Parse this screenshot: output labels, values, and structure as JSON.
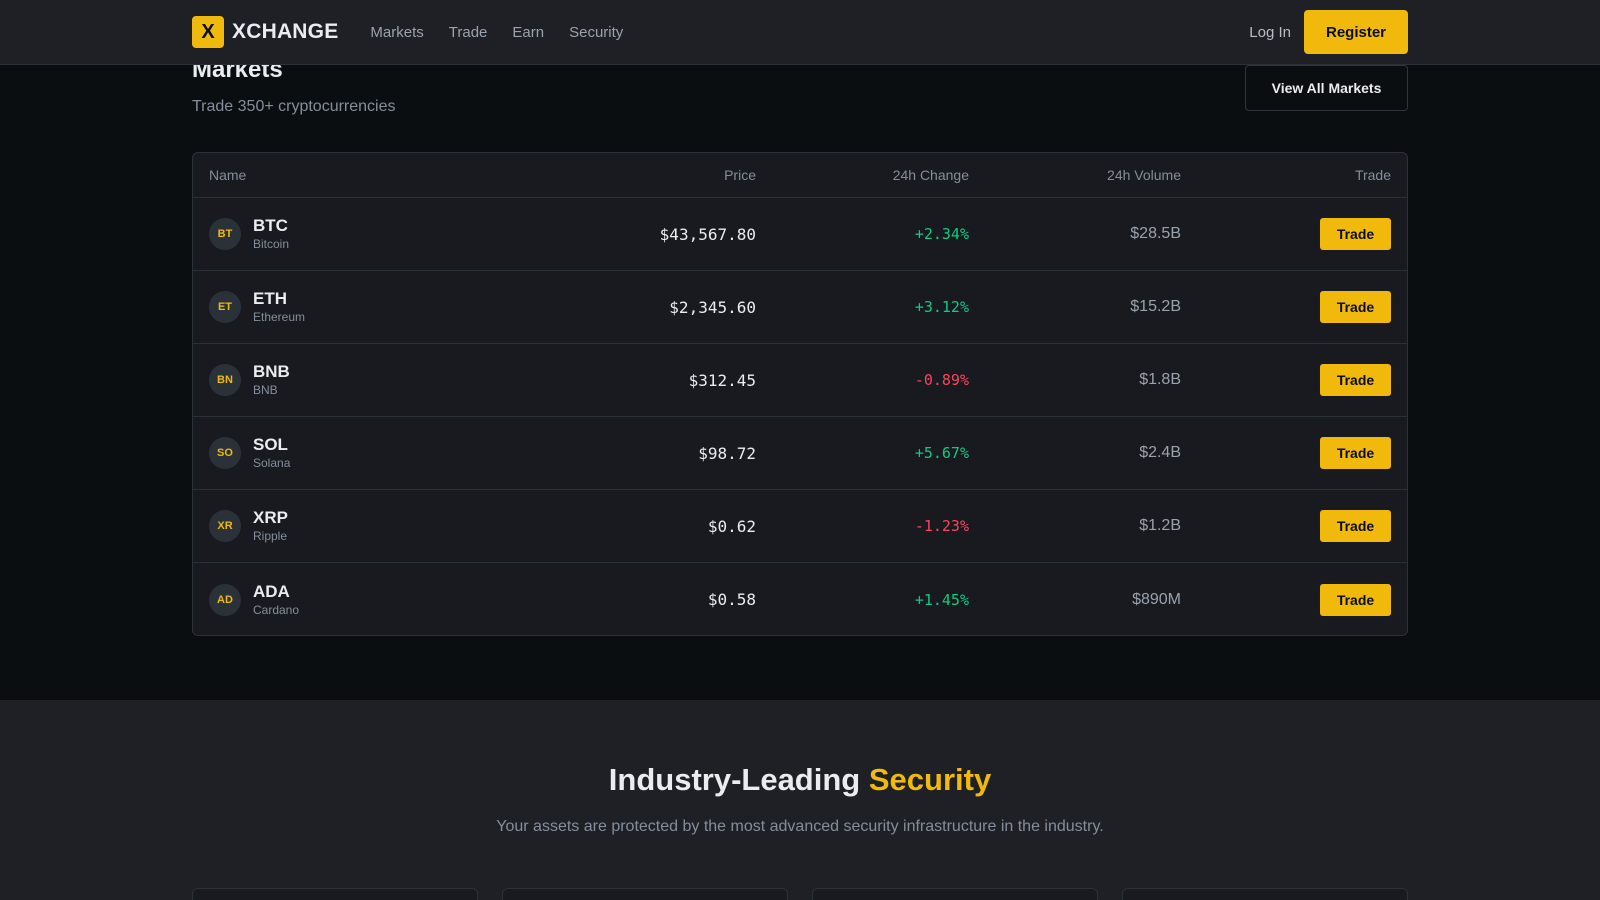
{
  "header": {
    "logo_mark": "X",
    "logo_text": "XCHANGE",
    "nav": [
      "Markets",
      "Trade",
      "Earn",
      "Security"
    ],
    "login": "Log In",
    "register": "Register"
  },
  "markets": {
    "title": "Markets",
    "subtitle": "Trade 350+ cryptocurrencies",
    "view_all": "View All Markets",
    "columns": [
      "Name",
      "Price",
      "24h Change",
      "24h Volume",
      "Trade"
    ],
    "rows": [
      {
        "icon": "BT",
        "symbol": "BTC",
        "name": "Bitcoin",
        "price": "$43,567.80",
        "change": "+2.34%",
        "direction": "up",
        "volume": "$28.5B",
        "action": "Trade"
      },
      {
        "icon": "ET",
        "symbol": "ETH",
        "name": "Ethereum",
        "price": "$2,345.60",
        "change": "+3.12%",
        "direction": "up",
        "volume": "$15.2B",
        "action": "Trade"
      },
      {
        "icon": "BN",
        "symbol": "BNB",
        "name": "BNB",
        "price": "$312.45",
        "change": "-0.89%",
        "direction": "down",
        "volume": "$1.8B",
        "action": "Trade"
      },
      {
        "icon": "SO",
        "symbol": "SOL",
        "name": "Solana",
        "price": "$98.72",
        "change": "+5.67%",
        "direction": "up",
        "volume": "$2.4B",
        "action": "Trade"
      },
      {
        "icon": "XR",
        "symbol": "XRP",
        "name": "Ripple",
        "price": "$0.62",
        "change": "-1.23%",
        "direction": "down",
        "volume": "$1.2B",
        "action": "Trade"
      },
      {
        "icon": "AD",
        "symbol": "ADA",
        "name": "Cardano",
        "price": "$0.58",
        "change": "+1.45%",
        "direction": "up",
        "volume": "$890M",
        "action": "Trade"
      }
    ]
  },
  "security": {
    "title_main": "Industry-Leading ",
    "title_accent": "Security",
    "subtitle": "Your assets are protected by the most advanced security infrastructure in the industry."
  },
  "colors": {
    "accent": "#f0b90b",
    "up": "#0ecb81",
    "down": "#f6465d",
    "background": "#0b0e11",
    "panel": "#181a20"
  }
}
